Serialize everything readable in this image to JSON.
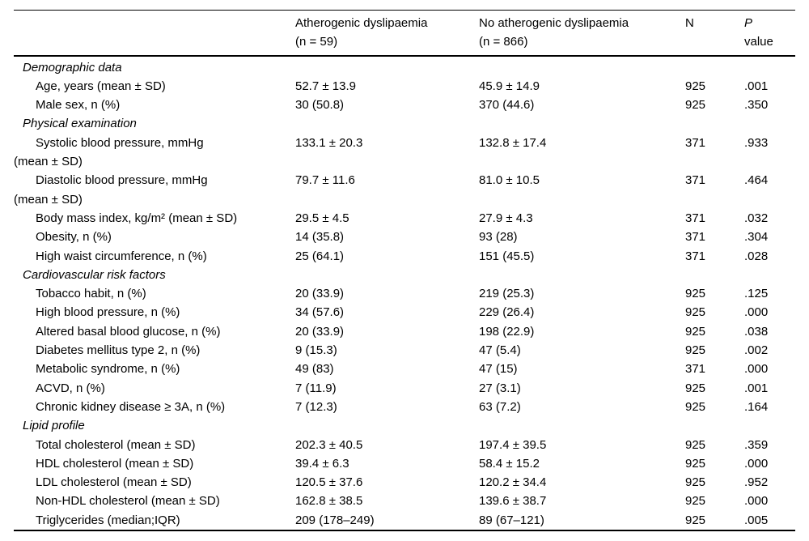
{
  "colors": {
    "text": "#000000",
    "background": "#ffffff",
    "rule": "#000000"
  },
  "header": {
    "group1": {
      "title": "Atherogenic dyslipaemia",
      "sub": "(n = 59)"
    },
    "group2": {
      "title": "No atherogenic dyslipaemia",
      "sub": "(n = 866)"
    },
    "n": "N",
    "p": {
      "title": "P",
      "sub": "value"
    }
  },
  "rows": [
    {
      "type": "section",
      "label": "Demographic data"
    },
    {
      "type": "item",
      "label": "Age, years (mean ± SD)",
      "v1": "52.7 ± 13.9",
      "v2": "45.9 ± 14.9",
      "n": "925",
      "p": ".001"
    },
    {
      "type": "item",
      "label": "Male sex, n (%)",
      "v1": "30 (50.8)",
      "v2": "370 (44.6)",
      "n": "925",
      "p": ".350"
    },
    {
      "type": "section",
      "label": "Physical examination"
    },
    {
      "type": "item-wrap",
      "label": "Systolic blood pressure, mmHg",
      "wrap": "(mean ± SD)",
      "v1": "133.1 ± 20.3",
      "v2": "132.8 ± 17.4",
      "n": "371",
      "p": ".933"
    },
    {
      "type": "item-wrap",
      "label": "Diastolic blood pressure, mmHg",
      "wrap": "(mean ± SD)",
      "v1": "79.7 ± 11.6",
      "v2": "81.0 ± 10.5",
      "n": "371",
      "p": ".464"
    },
    {
      "type": "item",
      "label": "Body mass index, kg/m² (mean ± SD)",
      "v1": "29.5 ± 4.5",
      "v2": "27.9 ± 4.3",
      "n": "371",
      "p": ".032"
    },
    {
      "type": "item",
      "label": "Obesity, n (%)",
      "v1": "14 (35.8)",
      "v2": "93 (28)",
      "n": "371",
      "p": ".304"
    },
    {
      "type": "item",
      "label": "High waist circumference, n (%)",
      "v1": "25 (64.1)",
      "v2": "151 (45.5)",
      "n": "371",
      "p": ".028"
    },
    {
      "type": "section",
      "label": "Cardiovascular risk factors"
    },
    {
      "type": "item",
      "label": "Tobacco habit, n (%)",
      "v1": "20 (33.9)",
      "v2": "219 (25.3)",
      "n": "925",
      "p": ".125"
    },
    {
      "type": "item",
      "label": "High blood pressure, n (%)",
      "v1": "34 (57.6)",
      "v2": "229 (26.4)",
      "n": "925",
      "p": ".000"
    },
    {
      "type": "item",
      "label": "Altered basal blood glucose, n (%)",
      "v1": "20 (33.9)",
      "v2": "198 (22.9)",
      "n": "925",
      "p": ".038"
    },
    {
      "type": "item",
      "label": "Diabetes mellitus type 2, n (%)",
      "v1": "9 (15.3)",
      "v2": "47 (5.4)",
      "n": "925",
      "p": ".002"
    },
    {
      "type": "item",
      "label": "Metabolic syndrome, n (%)",
      "v1": "49 (83)",
      "v2": "47 (15)",
      "n": "371",
      "p": ".000"
    },
    {
      "type": "item",
      "label": "ACVD, n (%)",
      "v1": "7 (11.9)",
      "v2": "27 (3.1)",
      "n": "925",
      "p": ".001"
    },
    {
      "type": "item",
      "label": "Chronic kidney disease ≥ 3A, n (%)",
      "v1": "7 (12.3)",
      "v2": "63 (7.2)",
      "n": "925",
      "p": ".164"
    },
    {
      "type": "section",
      "label": "Lipid profile"
    },
    {
      "type": "item",
      "label": "Total cholesterol (mean ± SD)",
      "v1": "202.3 ± 40.5",
      "v2": "197.4 ± 39.5",
      "n": "925",
      "p": ".359"
    },
    {
      "type": "item",
      "label": "HDL cholesterol (mean ± SD)",
      "v1": "39.4 ± 6.3",
      "v2": "58.4 ± 15.2",
      "n": "925",
      "p": ".000"
    },
    {
      "type": "item",
      "label": "LDL cholesterol (mean ± SD)",
      "v1": "120.5 ± 37.6",
      "v2": "120.2 ± 34.4",
      "n": "925",
      "p": ".952"
    },
    {
      "type": "item",
      "label": "Non-HDL cholesterol (mean ± SD)",
      "v1": "162.8 ± 38.5",
      "v2": "139.6 ± 38.7",
      "n": "925",
      "p": ".000"
    },
    {
      "type": "item",
      "label": "Triglycerides (median;IQR)",
      "v1": "209 (178–249)",
      "v2": "89 (67–121)",
      "n": "925",
      "p": ".005"
    }
  ]
}
